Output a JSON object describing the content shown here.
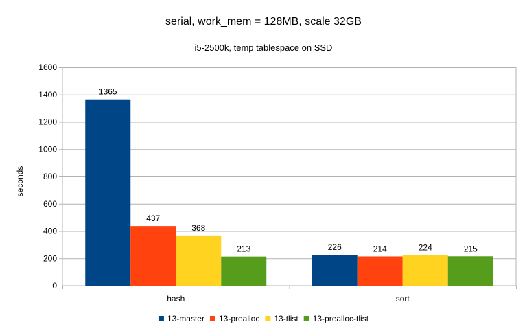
{
  "chart_data": {
    "type": "bar",
    "title": "serial, work_mem = 128MB, scale 32GB",
    "subtitle": "i5-2500k, temp tablespace on SSD",
    "xlabel": "",
    "ylabel": "seconds",
    "ylim": [
      0,
      1600
    ],
    "yticks": [
      0,
      200,
      400,
      600,
      800,
      1000,
      1200,
      1400,
      1600
    ],
    "grid": true,
    "legend_position": "bottom",
    "categories": [
      "hash",
      "sort"
    ],
    "series": [
      {
        "name": "13-master",
        "color": "#004586",
        "values": [
          1365,
          226
        ]
      },
      {
        "name": "13-prealloc",
        "color": "#ff420e",
        "values": [
          437,
          214
        ]
      },
      {
        "name": "13-tlist",
        "color": "#ffd320",
        "values": [
          368,
          224
        ]
      },
      {
        "name": "13-prealloc-tlist",
        "color": "#579d1c",
        "values": [
          213,
          215
        ]
      }
    ]
  }
}
